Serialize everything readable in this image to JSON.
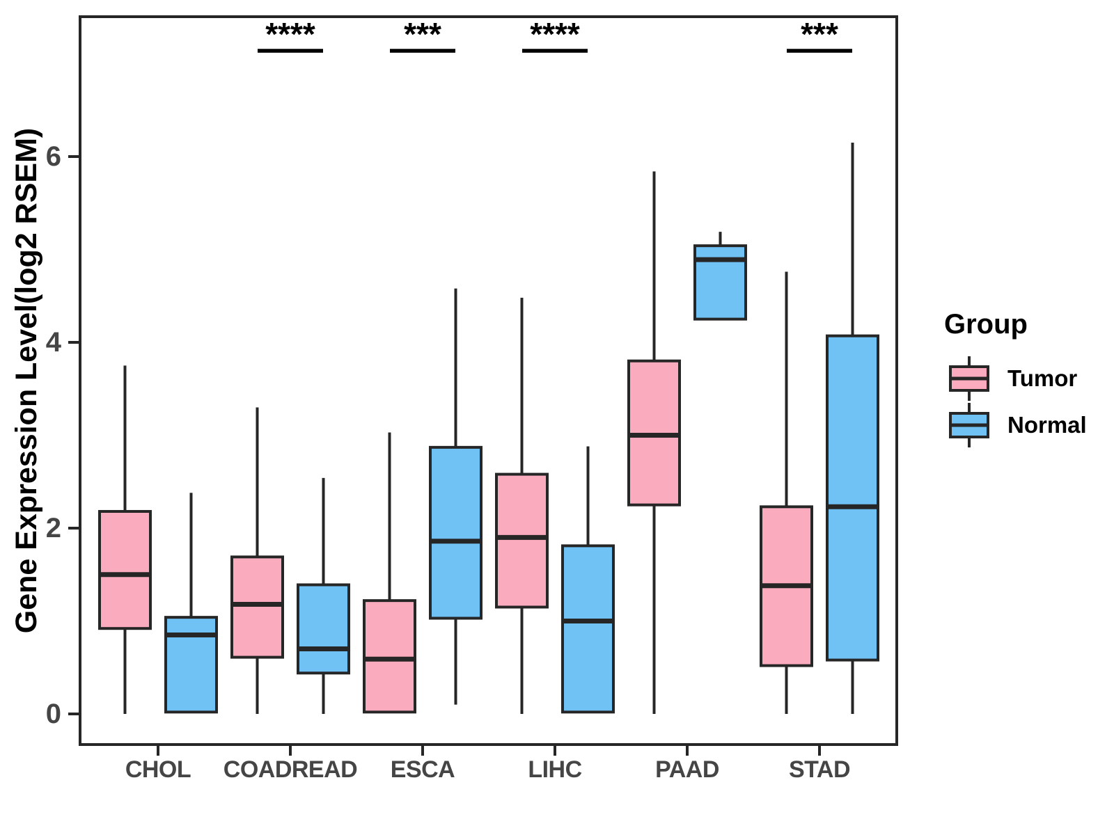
{
  "figure": {
    "y_axis": {
      "label": "Gene Expression Level(log2 RSEM)",
      "tick_labels": [
        "0",
        "2",
        "4",
        "6"
      ],
      "tick_values": [
        0,
        2,
        4,
        6
      ]
    },
    "x_axis": {
      "tick_labels": [
        "CHOL",
        "COADREAD",
        "ESCA",
        "LIHC",
        "PAAD",
        "STAD"
      ]
    },
    "legend": {
      "title": "Group",
      "entries": [
        {
          "label": "Tumor",
          "color": "#FAABBE"
        },
        {
          "label": "Normal",
          "color": "#70C1F4"
        }
      ]
    }
  },
  "chart_data": {
    "type": "boxplot",
    "title": "",
    "xlabel": "",
    "ylabel": "Gene Expression Level(log2 RSEM)",
    "categories": [
      "CHOL",
      "COADREAD",
      "ESCA",
      "LIHC",
      "PAAD",
      "STAD"
    ],
    "ylim": [
      -0.35,
      7.5
    ],
    "yticks": [
      0,
      2,
      4,
      6
    ],
    "grid": false,
    "legend_position": "right",
    "series": [
      {
        "name": "Tumor",
        "color": "#FAABBE",
        "boxes": [
          {
            "category": "CHOL",
            "min": 0,
            "q1": 0.92,
            "median": 1.5,
            "q3": 2.18,
            "max": 3.75
          },
          {
            "category": "COADREAD",
            "min": 0,
            "q1": 0.61,
            "median": 1.18,
            "q3": 1.69,
            "max": 3.3
          },
          {
            "category": "ESCA",
            "min": 0.02,
            "q1": 0.02,
            "median": 0.59,
            "q3": 1.22,
            "max": 3.03
          },
          {
            "category": "LIHC",
            "min": 0,
            "q1": 1.15,
            "median": 1.9,
            "q3": 2.58,
            "max": 4.48
          },
          {
            "category": "PAAD",
            "min": 0,
            "q1": 2.25,
            "median": 3.0,
            "q3": 3.8,
            "max": 5.84
          },
          {
            "category": "STAD",
            "min": 0,
            "q1": 0.52,
            "median": 1.38,
            "q3": 2.23,
            "max": 4.76
          }
        ]
      },
      {
        "name": "Normal",
        "color": "#70C1F4",
        "boxes": [
          {
            "category": "CHOL",
            "min": 0.02,
            "q1": 0.02,
            "median": 0.85,
            "q3": 1.04,
            "max": 2.38
          },
          {
            "category": "COADREAD",
            "min": 0,
            "q1": 0.44,
            "median": 0.7,
            "q3": 1.39,
            "max": 2.54
          },
          {
            "category": "ESCA",
            "min": 0.1,
            "q1": 1.03,
            "median": 1.86,
            "q3": 2.87,
            "max": 4.58
          },
          {
            "category": "LIHC",
            "min": 0.02,
            "q1": 0.02,
            "median": 1.0,
            "q3": 1.81,
            "max": 2.88
          },
          {
            "category": "PAAD",
            "min": 4.25,
            "q1": 4.25,
            "median": 4.89,
            "q3": 5.04,
            "max": 5.19
          },
          {
            "category": "STAD",
            "min": 0,
            "q1": 0.58,
            "median": 2.23,
            "q3": 4.07,
            "max": 6.15
          }
        ]
      }
    ],
    "significance": [
      {
        "category": "COADREAD",
        "label": "****"
      },
      {
        "category": "ESCA",
        "label": "***"
      },
      {
        "category": "LIHC",
        "label": "****"
      },
      {
        "category": "STAD",
        "label": "***"
      }
    ],
    "colors": {
      "box_border": "#262626",
      "axis_line": "#262626",
      "axis_text": "#454545",
      "annotation": "#000000"
    }
  }
}
